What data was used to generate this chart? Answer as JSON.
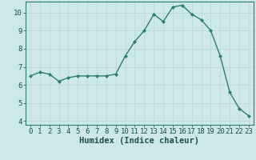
{
  "x": [
    0,
    1,
    2,
    3,
    4,
    5,
    6,
    7,
    8,
    9,
    10,
    11,
    12,
    13,
    14,
    15,
    16,
    17,
    18,
    19,
    20,
    21,
    22,
    23
  ],
  "y": [
    6.5,
    6.7,
    6.6,
    6.2,
    6.4,
    6.5,
    6.5,
    6.5,
    6.5,
    6.6,
    7.6,
    8.4,
    9.0,
    9.9,
    9.5,
    10.3,
    10.4,
    9.9,
    9.6,
    9.0,
    7.6,
    5.6,
    4.7,
    4.3
  ],
  "line_color": "#2e7d6e",
  "marker": "D",
  "markersize": 2.0,
  "linewidth": 1.0,
  "background_color": "#cde8e8",
  "grid_color_major": "#b8d4d4",
  "grid_color_minor": "#b8d4d4",
  "xlabel": "Humidex (Indice chaleur)",
  "xlabel_fontsize": 7.5,
  "tick_fontsize": 6.5,
  "xlim": [
    -0.5,
    23.5
  ],
  "ylim": [
    3.8,
    10.6
  ],
  "yticks": [
    4,
    5,
    6,
    7,
    8,
    9,
    10
  ],
  "xticks": [
    0,
    1,
    2,
    3,
    4,
    5,
    6,
    7,
    8,
    9,
    10,
    11,
    12,
    13,
    14,
    15,
    16,
    17,
    18,
    19,
    20,
    21,
    22,
    23
  ]
}
